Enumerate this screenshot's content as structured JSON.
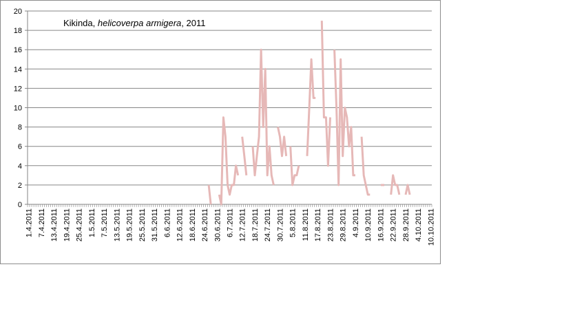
{
  "chart_data": {
    "type": "line",
    "title_parts": [
      {
        "text": "Kikinda, ",
        "italic": false
      },
      {
        "text": "helicoverpa armigera",
        "italic": true
      },
      {
        "text": ", 2011",
        "italic": false
      }
    ],
    "xlabel": "",
    "ylabel": "",
    "ylim": [
      0,
      20
    ],
    "yticks": [
      0,
      2,
      4,
      6,
      8,
      10,
      12,
      14,
      16,
      18,
      20
    ],
    "x_tick_labels": [
      "1.4.2011",
      "7.4.2011",
      "13.4.2011",
      "19.4.2011",
      "25.4.2011",
      "1.5.2011",
      "7.5.2011",
      "13.5.2011",
      "19.5.2011",
      "25.5.2011",
      "31.5.2011",
      "6.6.2011",
      "12.6.2011",
      "18.6.2011",
      "24.6.2011",
      "30.6.2011",
      "6.7.2011",
      "12.7.2011",
      "18.7.2011",
      "24.7.2011",
      "30.7.2011",
      "5.8.2011",
      "11.8.2011",
      "17.8.2011",
      "23.8.2011",
      "29.8.2011",
      "4.9.2011",
      "10.9.2011",
      "16.9.2011",
      "22.9.2011",
      "28.9.2011",
      "4.10.2011",
      "10.10.2011"
    ],
    "x_start": "1.4.2011",
    "x_end": "10.10.2011",
    "grid": "horizontal",
    "series_color": "#e6b8b7",
    "series": [
      {
        "values": [
          [
            "26.6.2011",
            2
          ],
          [
            "27.6.2011",
            0
          ],
          [
            "1.7.2011",
            1
          ],
          [
            "2.7.2011",
            0
          ],
          [
            "3.7.2011",
            9
          ],
          [
            "4.7.2011",
            7
          ],
          [
            "5.7.2011",
            2
          ],
          [
            "6.7.2011",
            1
          ],
          [
            "7.7.2011",
            2
          ],
          [
            "8.7.2011",
            2
          ],
          [
            "9.7.2011",
            4
          ],
          [
            "10.7.2011",
            3
          ],
          [
            "12.7.2011",
            7
          ],
          [
            "13.7.2011",
            5
          ],
          [
            "14.7.2011",
            3
          ],
          [
            "17.7.2011",
            6
          ],
          [
            "18.7.2011",
            3
          ],
          [
            "19.7.2011",
            5
          ],
          [
            "20.7.2011",
            7
          ],
          [
            "21.7.2011",
            16
          ],
          [
            "22.7.2011",
            8
          ],
          [
            "23.7.2011",
            14
          ],
          [
            "24.7.2011",
            3
          ],
          [
            "25.7.2011",
            6
          ],
          [
            "26.7.2011",
            3
          ],
          [
            "27.7.2011",
            2
          ],
          [
            "29.7.2011",
            8
          ],
          [
            "30.7.2011",
            7
          ],
          [
            "31.7.2011",
            5
          ],
          [
            "1.8.2011",
            7
          ],
          [
            "2.8.2011",
            5
          ],
          [
            "4.8.2011",
            6
          ],
          [
            "5.8.2011",
            2
          ],
          [
            "6.8.2011",
            3
          ],
          [
            "7.8.2011",
            3
          ],
          [
            "8.8.2011",
            4
          ],
          [
            "12.8.2011",
            5
          ],
          [
            "13.8.2011",
            10
          ],
          [
            "14.8.2011",
            15
          ],
          [
            "15.8.2011",
            11
          ],
          [
            "16.8.2011",
            11
          ],
          [
            "19.8.2011",
            19
          ],
          [
            "20.8.2011",
            9
          ],
          [
            "21.8.2011",
            9
          ],
          [
            "22.8.2011",
            4
          ],
          [
            "23.8.2011",
            9
          ],
          [
            "25.8.2011",
            16
          ],
          [
            "26.8.2011",
            10
          ],
          [
            "27.8.2011",
            2
          ],
          [
            "28.8.2011",
            15
          ],
          [
            "29.8.2011",
            5
          ],
          [
            "30.8.2011",
            10
          ],
          [
            "31.8.2011",
            9
          ],
          [
            "1.9.2011",
            6
          ],
          [
            "2.9.2011",
            8
          ],
          [
            "3.9.2011",
            3
          ],
          [
            "4.9.2011",
            3
          ],
          [
            "7.9.2011",
            7
          ],
          [
            "8.9.2011",
            3
          ],
          [
            "9.9.2011",
            2
          ],
          [
            "10.9.2011",
            1
          ],
          [
            "11.9.2011",
            1
          ],
          [
            "17.9.2011",
            2
          ],
          [
            "21.9.2011",
            1
          ],
          [
            "22.9.2011",
            3
          ],
          [
            "23.9.2011",
            2
          ],
          [
            "24.9.2011",
            2
          ],
          [
            "25.9.2011",
            1
          ],
          [
            "28.9.2011",
            1
          ],
          [
            "29.9.2011",
            2
          ],
          [
            "30.9.2011",
            1
          ]
        ]
      }
    ]
  }
}
